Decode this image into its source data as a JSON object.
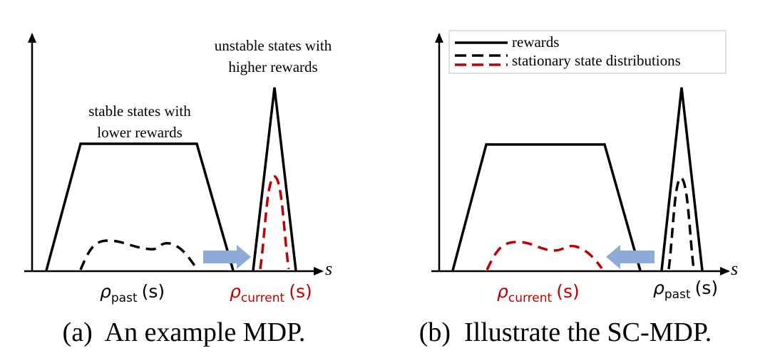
{
  "panel_a": {
    "annotation_unstable": [
      "unstable states with",
      "higher rewards"
    ],
    "annotation_stable": [
      "stable states with",
      "lower rewards"
    ],
    "axis_label": "s",
    "rho_symbol": "ρ",
    "rho_left_sub": "past",
    "rho_right_sub": "current",
    "rho_arg": "(s)",
    "caption": "(a)  An example MDP."
  },
  "panel_b": {
    "legend": {
      "rewards_label": "rewards",
      "distributions_label": "stationary state distributions"
    },
    "axis_label": "s",
    "rho_symbol": "ρ",
    "rho_left_sub": "current",
    "rho_right_sub": "past",
    "rho_arg": "(s)",
    "caption": "(b)  Illustrate the SC-MDP."
  },
  "colors": {
    "line": "#000000",
    "dashed_red": "#c00000",
    "arrow_blue": "#8fa9d9",
    "legend_border": "#cccccc"
  }
}
